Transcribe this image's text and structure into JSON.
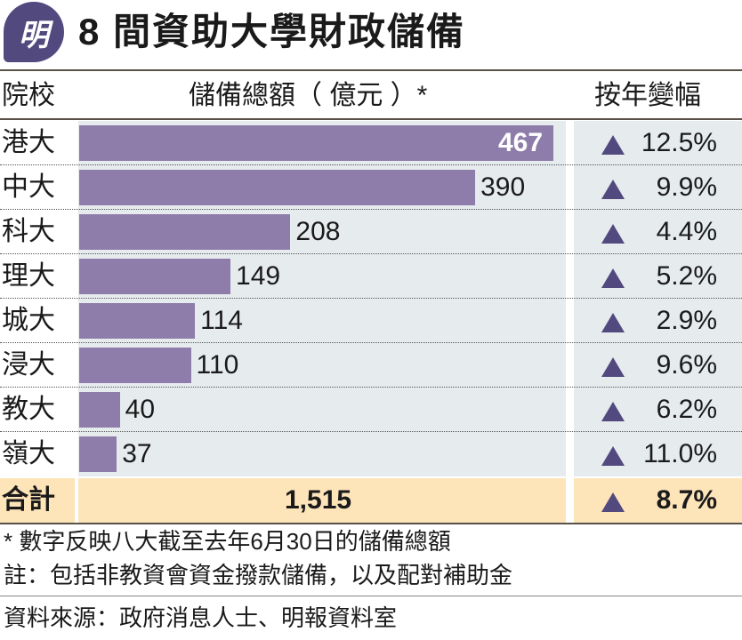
{
  "logo_text": "明",
  "title": "8 間資助大學財政儲備",
  "chart_data": {
    "type": "bar",
    "orientation": "horizontal",
    "title": "8 間資助大學財政儲備",
    "headers": {
      "category": "院校",
      "value": "儲備總額（ 億元 ）*",
      "change": "按年變幅"
    },
    "categories": [
      "港大",
      "中大",
      "科大",
      "理大",
      "城大",
      "浸大",
      "教大",
      "嶺大"
    ],
    "values": [
      467,
      390,
      208,
      149,
      114,
      110,
      40,
      37
    ],
    "value_labels": [
      "467",
      "390",
      "208",
      "149",
      "114",
      "110",
      "40",
      "37"
    ],
    "changes": [
      "12.5%",
      "9.9%",
      "4.4%",
      "5.2%",
      "2.9%",
      "9.6%",
      "6.2%",
      "11.0%"
    ],
    "change_direction": "up",
    "total": {
      "label": "合計",
      "value": "1,515",
      "change": "8.7%"
    },
    "colors": {
      "bar": "#8e7cab",
      "plot_bg": "#e6ebee",
      "total_bg": "#fde4b9",
      "arrow": "#524a7f",
      "logo": "#524a7f"
    }
  },
  "notes": [
    "* 數字反映八大截至去年6月30日的儲備總額",
    "註：包括非教資會資金撥款儲備，以及配對補助金",
    "資料來源：政府消息人士、明報資料室"
  ]
}
